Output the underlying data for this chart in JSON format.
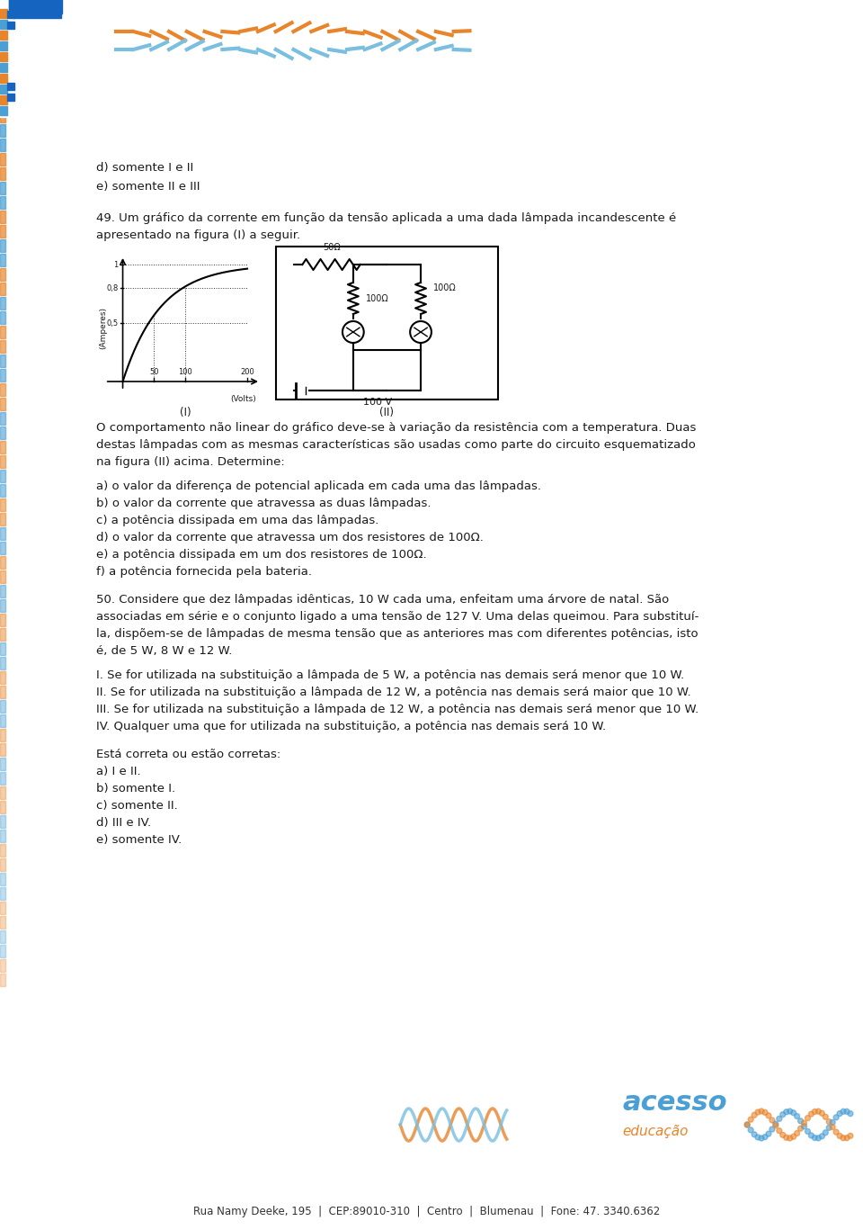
{
  "bg_color": "#ffffff",
  "text_color": "#1a1a1a",
  "title_prev_lines": [
    "d) somente I e II",
    "e) somente II e III"
  ],
  "q49_intro": "49. Um gráfico da corrente em função da tensão aplicada a uma dada lâmpada incandescente é\napresentado na figura (I) a seguir.",
  "graph_label_I": "(I)",
  "graph_label_II": "(II)",
  "graph_ylabel": "(Amperes)",
  "graph_xlabel": "(Volts)",
  "graph_yticks": [
    "1",
    "0,8",
    "0,5"
  ],
  "graph_xticks": [
    "50",
    "100",
    "200"
  ],
  "circuit_resistors": [
    "50Ω",
    "100Ω",
    "100Ω"
  ],
  "circuit_voltage": "100 V",
  "behavior_text": "O comportamento não linear do gráfico deve-se à variação da resistência com a temperatura. Duas\ndestas lâmpadas com as mesmas características são usadas como parte do circuito esquematizado\nna figura (II) acima. Determine:",
  "q49_items": [
    "a) o valor da diferença de potencial aplicada em cada uma das lâmpadas.",
    "b) o valor da corrente que atravessa as duas lâmpadas.",
    "c) a potência dissipada em uma das lâmpadas.",
    "d) o valor da corrente que atravessa um dos resistores de 100Ω.",
    "e) a potência dissipada em um dos resistores de 100Ω.",
    "f) a potência fornecida pela bateria."
  ],
  "q50_text": "50. Considere que dez lâmpadas idênticas, 10 W cada uma, enfeitam uma árvore de natal. São\nassociadas em série e o conjunto ligado a uma tensão de 127 V. Uma delas queimou. Para substituí-\nla, dispõem-se de lâmpadas de mesma tensão que as anteriores mas com diferentes potências, isto\né, de 5 W, 8 W e 12 W.",
  "q50_items_roman": [
    "I. Se for utilizada na substituição a lâmpada de 5 W, a potência nas demais será menor que 10 W.",
    "II. Se for utilizada na substituição a lâmpada de 12 W, a potência nas demais será maior que 10 W.",
    "III. Se for utilizada na substituição a lâmpada de 12 W, a potência nas demais será menor que 10 W.",
    "IV. Qualquer uma que for utilizada na substituição, a potência nas demais será 10 W."
  ],
  "esta_correta": "Está correta ou estão corretas:",
  "q50_options": [
    "a) I e II.",
    "b) somente I.",
    "c) somente II.",
    "d) III e IV.",
    "e) somente IV."
  ],
  "footer_text": "Rua Namy Deeke, 195  |  CEP:89010-310  |  Centro  |  Blumenau  |  Fone: 47. 3340.6362"
}
